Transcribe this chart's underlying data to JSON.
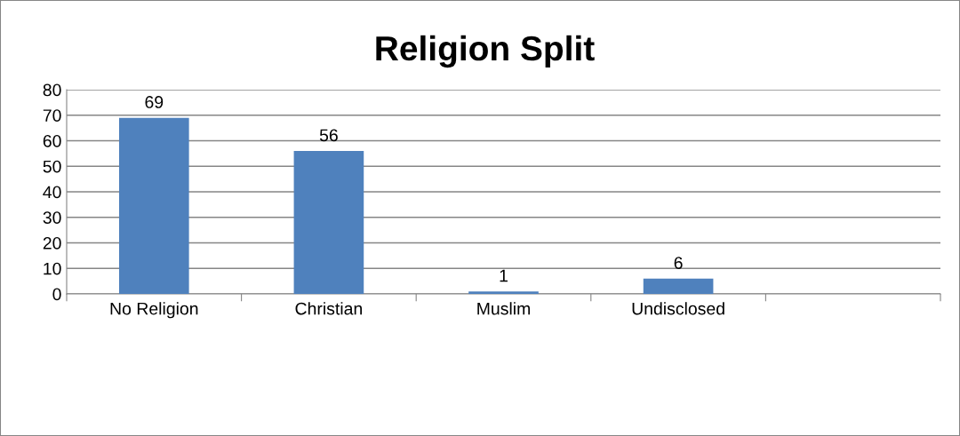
{
  "chart_data": {
    "type": "bar",
    "title": "Religion Split",
    "categories": [
      "No Religion",
      "Christian",
      "Muslim",
      "Undisclosed",
      null
    ],
    "values": [
      69,
      56,
      1,
      6,
      null
    ],
    "color": "#4f81bd",
    "ylim": [
      0,
      80
    ],
    "yticks": [
      0,
      10,
      20,
      30,
      40,
      50,
      60,
      70,
      80
    ],
    "grid": "y",
    "data_labels": true,
    "legend": false
  }
}
